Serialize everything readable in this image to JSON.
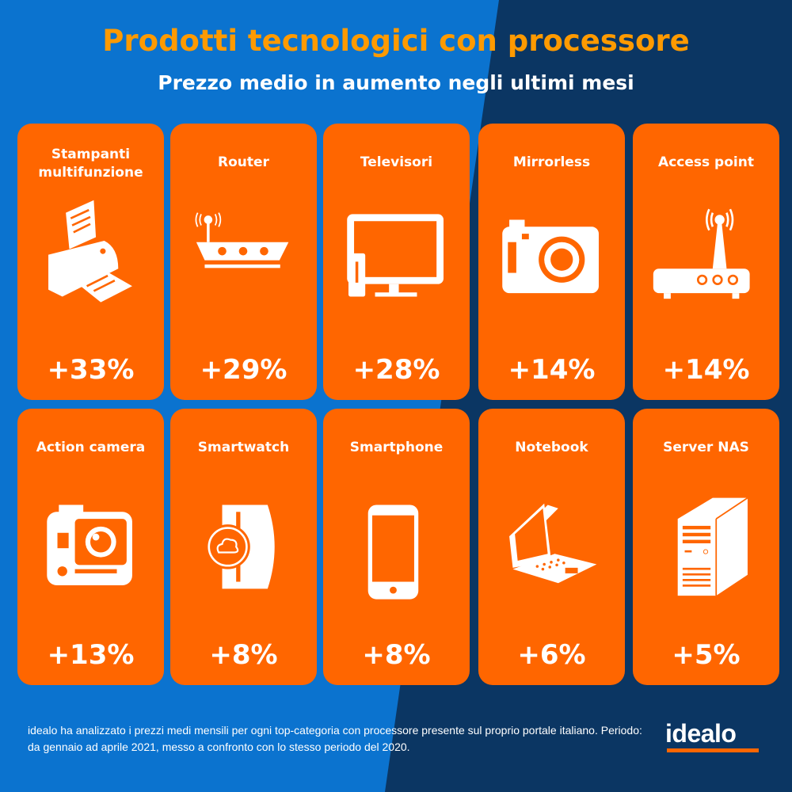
{
  "title": "Prodotti tecnologici con processore",
  "subtitle": "Prezzo medio in aumento negli ultimi mesi",
  "colors": {
    "blue": "#0B73CF",
    "navy": "#0B3663",
    "orange": "#FF6600",
    "title": "#FF9A00"
  },
  "cards": [
    {
      "label": "Stampanti multifunzione",
      "value": "+33%",
      "icon": "printer-icon"
    },
    {
      "label": "Router",
      "value": "+29%",
      "icon": "router-icon"
    },
    {
      "label": "Televisori",
      "value": "+28%",
      "icon": "tv-icon"
    },
    {
      "label": "Mirrorless",
      "value": "+14%",
      "icon": "camera-icon"
    },
    {
      "label": "Access point",
      "value": "+14%",
      "icon": "access-point-icon"
    },
    {
      "label": "Action camera",
      "value": "+13%",
      "icon": "action-camera-icon"
    },
    {
      "label": "Smartwatch",
      "value": "+8%",
      "icon": "smartwatch-icon"
    },
    {
      "label": "Smartphone",
      "value": "+8%",
      "icon": "smartphone-icon"
    },
    {
      "label": "Notebook",
      "value": "+6%",
      "icon": "notebook-icon"
    },
    {
      "label": "Server NAS",
      "value": "+5%",
      "icon": "server-icon"
    }
  ],
  "footer": "idealo ha analizzato i prezzi medi mensili per ogni top-categoria con processore presente sul proprio portale italiano. Periodo: da gennaio ad aprile 2021, messo a confronto con lo stesso periodo del 2020.",
  "logo": "idealo"
}
